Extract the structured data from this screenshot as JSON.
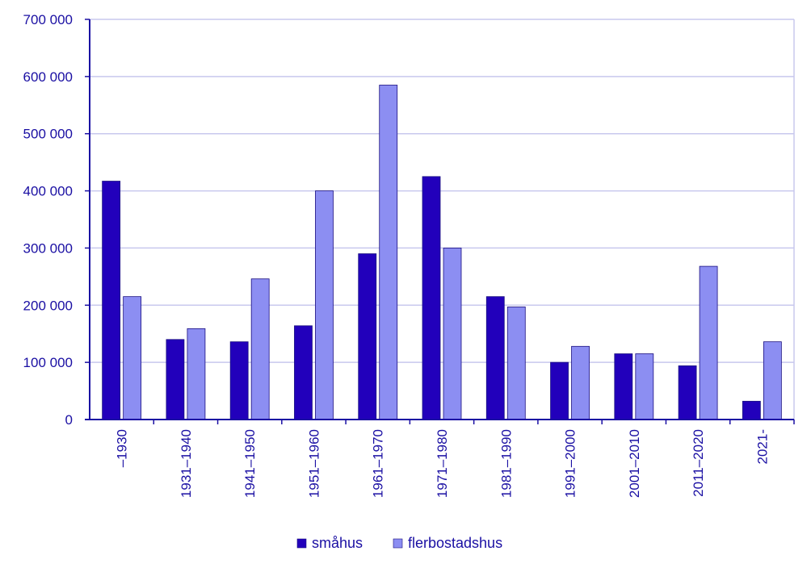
{
  "chart_data": {
    "type": "bar",
    "categories": [
      "–1930",
      "1931–1940",
      "1941–1950",
      "1951–1960",
      "1961–1970",
      "1971–1980",
      "1981–1990",
      "1991–2000",
      "2001–2010",
      "2011–2020",
      "2021-"
    ],
    "series": [
      {
        "name": "småhus",
        "color": "#2200bb",
        "values": [
          417000,
          140000,
          136000,
          164000,
          290000,
          425000,
          215000,
          100000,
          115000,
          94000,
          32000
        ]
      },
      {
        "name": "flerbostadshus",
        "color": "#8c8ef2",
        "values": [
          215000,
          159000,
          246000,
          400000,
          585000,
          300000,
          197000,
          128000,
          115000,
          268000,
          136000
        ]
      }
    ],
    "ylim": [
      0,
      700000
    ],
    "yticks": [
      0,
      100000,
      200000,
      300000,
      400000,
      500000,
      600000,
      700000
    ],
    "ytick_labels": [
      "0",
      "100 000",
      "200 000",
      "300 000",
      "400 000",
      "500 000",
      "600 000",
      "700 000"
    ],
    "grid": true,
    "legend_position": "bottom",
    "text_color": "#1a0fa3",
    "grid_color": "#c8c8ee",
    "axis_color": "#1a0fa3",
    "xlabel": "",
    "ylabel": "",
    "title": ""
  }
}
